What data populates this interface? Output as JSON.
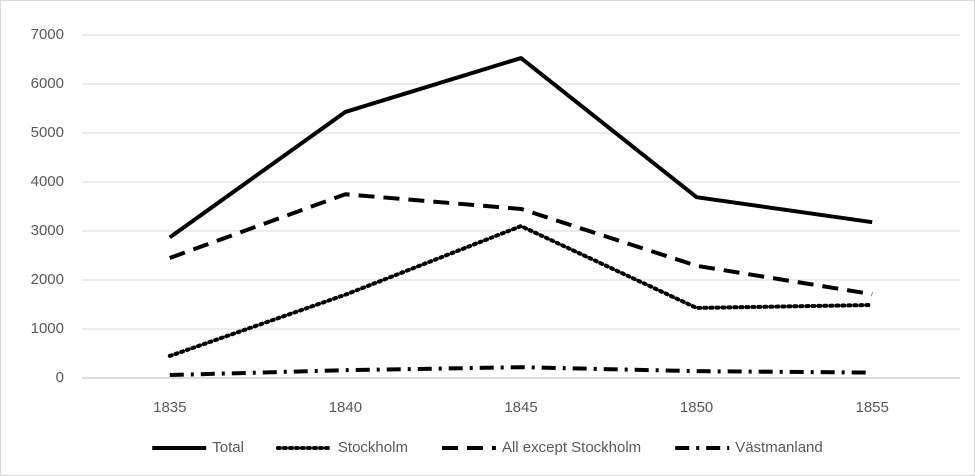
{
  "chart_data": {
    "type": "line",
    "categories": [
      "1835",
      "1840",
      "1845",
      "1850",
      "1855"
    ],
    "series": [
      {
        "name": "Total",
        "color": "#000000",
        "style": "solid",
        "values": [
          2870,
          5430,
          6530,
          3690,
          3180
        ]
      },
      {
        "name": "Stockholm",
        "color": "#000000",
        "style": "dotted",
        "values": [
          450,
          1700,
          3100,
          1430,
          1490
        ]
      },
      {
        "name": "All except Stockholm",
        "color": "#000000",
        "style": "dashed",
        "values": [
          2450,
          3750,
          3450,
          2290,
          1710
        ]
      },
      {
        "name": "Västmanland",
        "color": "#000000",
        "style": "dashdot",
        "values": [
          60,
          160,
          220,
          140,
          110
        ]
      }
    ],
    "ylim": [
      0,
      7000
    ],
    "yticks": [
      0,
      1000,
      2000,
      3000,
      4000,
      5000,
      6000,
      7000
    ],
    "grid": true,
    "legend": "bottom"
  }
}
